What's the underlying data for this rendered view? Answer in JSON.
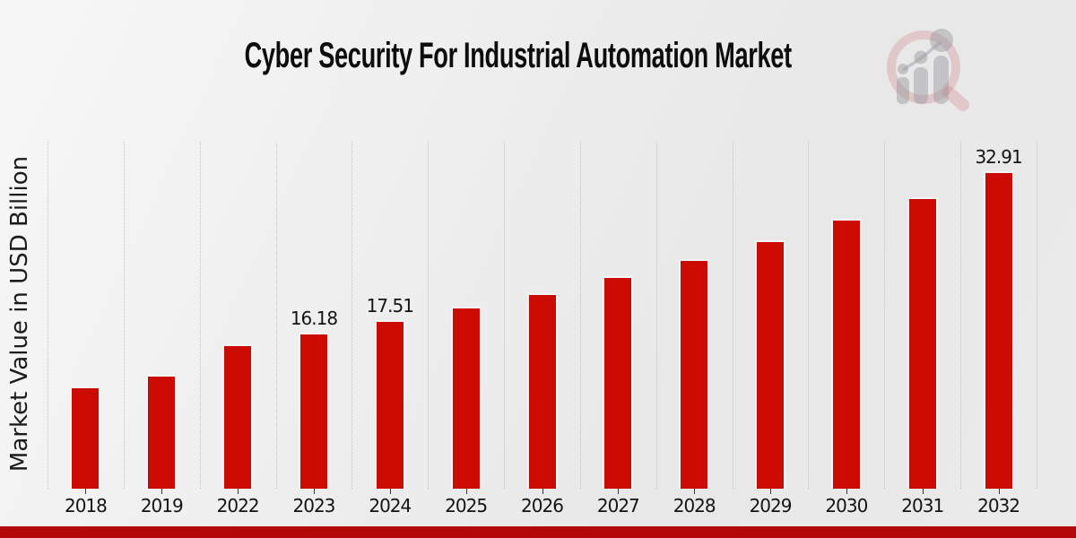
{
  "page": {
    "title": "Cyber Security For Industrial Automation Market",
    "y_axis_label": "Market Value in USD Billion",
    "colors": {
      "bar": "#cb0a02",
      "bar_edge": "#f4f4f4",
      "bottom_strip": "#b30808",
      "background": "#ebebeb",
      "gridline": "#c3c3c3",
      "text": "#141414"
    },
    "logo": "market-research-future-watermark-icon"
  },
  "chart_data": {
    "type": "bar",
    "title": "Cyber Security For Industrial Automation Market",
    "xlabel": "",
    "ylabel": "Market Value in USD Billion",
    "categories": [
      "2018",
      "2019",
      "2022",
      "2023",
      "2024",
      "2025",
      "2026",
      "2027",
      "2028",
      "2029",
      "2030",
      "2031",
      "2032"
    ],
    "values": [
      10.65,
      11.78,
      14.95,
      16.18,
      17.51,
      18.88,
      20.28,
      22.06,
      23.83,
      25.79,
      28.04,
      30.28,
      32.91
    ],
    "data_labels": [
      "",
      "",
      "",
      "16.18",
      "17.51",
      "",
      "",
      "",
      "",
      "",
      "",
      "",
      "32.91"
    ],
    "ylim": [
      0,
      36
    ],
    "grid": "vertical-dotted-category-boundaries",
    "legend": null,
    "bar_color": "#cb0a02",
    "units": "USD Billion"
  }
}
